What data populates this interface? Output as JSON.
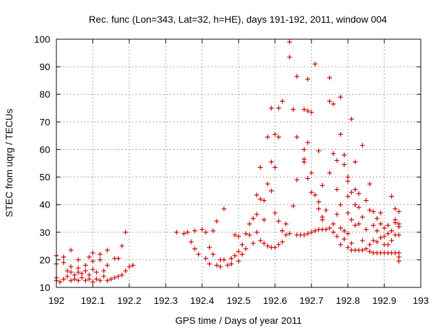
{
  "chart_data": {
    "type": "scatter",
    "title": "Rec. func (Lon=343, Lat=32, h=HE), days 191-192, 2011, window 004",
    "xlabel": "GPS time / Days of year 2011",
    "ylabel": "STEC from uqrg / TECUs",
    "xlim": [
      192,
      193
    ],
    "ylim": [
      10,
      100
    ],
    "xticks": [
      "192",
      "192.1",
      "192.2",
      "192.3",
      "192.4",
      "192.5",
      "192.6",
      "192.7",
      "192.8",
      "192.9",
      "193"
    ],
    "yticks": [
      "10",
      "20",
      "30",
      "40",
      "50",
      "60",
      "70",
      "80",
      "90",
      "100"
    ],
    "grid": true,
    "marker": "plus",
    "series": [
      {
        "color": "#cc0000",
        "points": [
          [
            192.0,
            12.5
          ],
          [
            192.0,
            13.5
          ],
          [
            192.0,
            18.5
          ],
          [
            192.0,
            21.5
          ],
          [
            192.01,
            12.0
          ],
          [
            192.02,
            13.0
          ],
          [
            192.02,
            19.0
          ],
          [
            192.02,
            21.0
          ],
          [
            192.03,
            14.0
          ],
          [
            192.03,
            16.0
          ],
          [
            192.04,
            12.5
          ],
          [
            192.04,
            15.5
          ],
          [
            192.04,
            17.5
          ],
          [
            192.04,
            23.5
          ],
          [
            192.05,
            13.0
          ],
          [
            192.05,
            14.5
          ],
          [
            192.06,
            12.5
          ],
          [
            192.06,
            15.5
          ],
          [
            192.06,
            17.0
          ],
          [
            192.06,
            20.0
          ],
          [
            192.07,
            13.5
          ],
          [
            192.07,
            15.0
          ],
          [
            192.08,
            12.5
          ],
          [
            192.08,
            16.0
          ],
          [
            192.08,
            18.0
          ],
          [
            192.09,
            13.0
          ],
          [
            192.09,
            14.5
          ],
          [
            192.09,
            21.0
          ],
          [
            192.1,
            12.0
          ],
          [
            192.1,
            16.5
          ],
          [
            192.1,
            19.5
          ],
          [
            192.1,
            22.5
          ],
          [
            192.11,
            13.0
          ],
          [
            192.11,
            15.5
          ],
          [
            192.12,
            12.5
          ],
          [
            192.12,
            20.0
          ],
          [
            192.12,
            22.0
          ],
          [
            192.13,
            14.0
          ],
          [
            192.13,
            16.0
          ],
          [
            192.14,
            12.5
          ],
          [
            192.14,
            18.0
          ],
          [
            192.14,
            23.5
          ],
          [
            192.15,
            13.0
          ],
          [
            192.16,
            13.5
          ],
          [
            192.16,
            20.5
          ],
          [
            192.17,
            14.0
          ],
          [
            192.17,
            20.5
          ],
          [
            192.18,
            14.5
          ],
          [
            192.18,
            25.0
          ],
          [
            192.19,
            16.0
          ],
          [
            192.19,
            30.0
          ],
          [
            192.2,
            17.5
          ],
          [
            192.21,
            18.0
          ],
          [
            192.33,
            30.0
          ],
          [
            192.35,
            29.5
          ],
          [
            192.36,
            30.0
          ],
          [
            192.37,
            26.5
          ],
          [
            192.38,
            24.0
          ],
          [
            192.38,
            30.5
          ],
          [
            192.39,
            22.0
          ],
          [
            192.4,
            31.0
          ],
          [
            192.41,
            20.5
          ],
          [
            192.41,
            30.0
          ],
          [
            192.42,
            18.5
          ],
          [
            192.42,
            24.5
          ],
          [
            192.43,
            30.5
          ],
          [
            192.43,
            22.0
          ],
          [
            192.44,
            18.0
          ],
          [
            192.44,
            34.0
          ],
          [
            192.45,
            17.5
          ],
          [
            192.45,
            20.0
          ],
          [
            192.46,
            38.5
          ],
          [
            192.46,
            20.0
          ],
          [
            192.47,
            18.0
          ],
          [
            192.48,
            18.5
          ],
          [
            192.48,
            20.5
          ],
          [
            192.49,
            21.5
          ],
          [
            192.49,
            29.0
          ],
          [
            192.5,
            19.5
          ],
          [
            192.5,
            23.0
          ],
          [
            192.5,
            28.5
          ],
          [
            192.51,
            22.0
          ],
          [
            192.51,
            25.5
          ],
          [
            192.52,
            24.0
          ],
          [
            192.52,
            29.5
          ],
          [
            192.53,
            29.0
          ],
          [
            192.53,
            33.0
          ],
          [
            192.54,
            26.0
          ],
          [
            192.54,
            35.0
          ],
          [
            192.55,
            30.0
          ],
          [
            192.55,
            36.5
          ],
          [
            192.55,
            43.5
          ],
          [
            192.56,
            27.0
          ],
          [
            192.56,
            42.0
          ],
          [
            192.56,
            53.5
          ],
          [
            192.57,
            26.0
          ],
          [
            192.57,
            34.5
          ],
          [
            192.57,
            41.5
          ],
          [
            192.58,
            25.0
          ],
          [
            192.58,
            47.5
          ],
          [
            192.58,
            64.5
          ],
          [
            192.59,
            24.5
          ],
          [
            192.59,
            45.0
          ],
          [
            192.59,
            55.5
          ],
          [
            192.59,
            75.0
          ],
          [
            192.6,
            24.5
          ],
          [
            192.6,
            37.0
          ],
          [
            192.6,
            53.5
          ],
          [
            192.6,
            65.5
          ],
          [
            192.61,
            25.5
          ],
          [
            192.61,
            34.0
          ],
          [
            192.61,
            64.5
          ],
          [
            192.61,
            75.0
          ],
          [
            192.62,
            26.5
          ],
          [
            192.62,
            30.5
          ],
          [
            192.62,
            77.5
          ],
          [
            192.63,
            29.0
          ],
          [
            192.63,
            33.0
          ],
          [
            192.64,
            99.0
          ],
          [
            192.64,
            93.5
          ],
          [
            192.64,
            29.5
          ],
          [
            192.65,
            39.5
          ],
          [
            192.65,
            74.5
          ],
          [
            192.66,
            29.0
          ],
          [
            192.66,
            49.0
          ],
          [
            192.66,
            64.5
          ],
          [
            192.66,
            86.5
          ],
          [
            192.67,
            29.0
          ],
          [
            192.68,
            29.0
          ],
          [
            192.68,
            55.5
          ],
          [
            192.68,
            56.5
          ],
          [
            192.68,
            60.0
          ],
          [
            192.68,
            74.5
          ],
          [
            192.69,
            29.5
          ],
          [
            192.69,
            49.5
          ],
          [
            192.69,
            62.5
          ],
          [
            192.69,
            74.0
          ],
          [
            192.69,
            85.5
          ],
          [
            192.7,
            30.0
          ],
          [
            192.7,
            44.5
          ],
          [
            192.7,
            51.5
          ],
          [
            192.7,
            73.5
          ],
          [
            192.71,
            30.5
          ],
          [
            192.71,
            43.5
          ],
          [
            192.71,
            91.0
          ],
          [
            192.72,
            31.0
          ],
          [
            192.72,
            38.5
          ],
          [
            192.72,
            41.0
          ],
          [
            192.72,
            59.5
          ],
          [
            192.73,
            31.0
          ],
          [
            192.73,
            34.5
          ],
          [
            192.73,
            35.5
          ],
          [
            192.73,
            47.0
          ],
          [
            192.74,
            31.0
          ],
          [
            192.74,
            38.0
          ],
          [
            192.75,
            31.5
          ],
          [
            192.75,
            51.5
          ],
          [
            192.75,
            77.5
          ],
          [
            192.75,
            86.0
          ],
          [
            192.76,
            30.0
          ],
          [
            192.76,
            33.0
          ],
          [
            192.76,
            58.5
          ],
          [
            192.76,
            76.5
          ],
          [
            192.77,
            28.5
          ],
          [
            192.77,
            36.5
          ],
          [
            192.77,
            45.5
          ],
          [
            192.77,
            56.0
          ],
          [
            192.78,
            25.5
          ],
          [
            192.78,
            31.5
          ],
          [
            192.78,
            40.0
          ],
          [
            192.78,
            65.5
          ],
          [
            192.78,
            79.0
          ],
          [
            192.79,
            27.5
          ],
          [
            192.79,
            30.5
          ],
          [
            192.79,
            54.5
          ],
          [
            192.79,
            58.0
          ],
          [
            192.8,
            24.5
          ],
          [
            192.8,
            29.5
          ],
          [
            192.8,
            37.0
          ],
          [
            192.8,
            43.0
          ],
          [
            192.8,
            48.5
          ],
          [
            192.8,
            50.0
          ],
          [
            192.81,
            23.5
          ],
          [
            192.81,
            26.0
          ],
          [
            192.81,
            34.5
          ],
          [
            192.81,
            44.5
          ],
          [
            192.81,
            71.0
          ],
          [
            192.82,
            23.5
          ],
          [
            192.82,
            32.5
          ],
          [
            192.82,
            40.0
          ],
          [
            192.82,
            45.5
          ],
          [
            192.82,
            55.5
          ],
          [
            192.83,
            23.5
          ],
          [
            192.83,
            33.0
          ],
          [
            192.83,
            39.0
          ],
          [
            192.83,
            44.0
          ],
          [
            192.84,
            23.5
          ],
          [
            192.84,
            27.0
          ],
          [
            192.84,
            35.5
          ],
          [
            192.84,
            61.5
          ],
          [
            192.85,
            24.0
          ],
          [
            192.85,
            31.0
          ],
          [
            192.85,
            41.5
          ],
          [
            192.86,
            23.0
          ],
          [
            192.86,
            25.5
          ],
          [
            192.86,
            38.0
          ],
          [
            192.86,
            47.5
          ],
          [
            192.87,
            22.5
          ],
          [
            192.87,
            27.0
          ],
          [
            192.87,
            32.5
          ],
          [
            192.87,
            37.5
          ],
          [
            192.88,
            22.5
          ],
          [
            192.88,
            26.5
          ],
          [
            192.88,
            30.5
          ],
          [
            192.88,
            35.0
          ],
          [
            192.89,
            22.5
          ],
          [
            192.89,
            28.0
          ],
          [
            192.89,
            33.0
          ],
          [
            192.89,
            37.0
          ],
          [
            192.9,
            22.5
          ],
          [
            192.9,
            25.5
          ],
          [
            192.9,
            28.5
          ],
          [
            192.9,
            31.5
          ],
          [
            192.91,
            22.5
          ],
          [
            192.91,
            25.5
          ],
          [
            192.91,
            29.5
          ],
          [
            192.91,
            32.5
          ],
          [
            192.92,
            22.5
          ],
          [
            192.92,
            27.0
          ],
          [
            192.92,
            30.5
          ],
          [
            192.92,
            43.0
          ],
          [
            192.93,
            22.5
          ],
          [
            192.93,
            29.0
          ],
          [
            192.93,
            33.5
          ],
          [
            192.93,
            34.5
          ],
          [
            192.93,
            38.5
          ],
          [
            192.94,
            19.5
          ],
          [
            192.94,
            21.0
          ],
          [
            192.94,
            22.5
          ],
          [
            192.94,
            29.0
          ],
          [
            192.94,
            32.0
          ],
          [
            192.94,
            33.0
          ],
          [
            192.94,
            37.5
          ]
        ]
      }
    ]
  }
}
